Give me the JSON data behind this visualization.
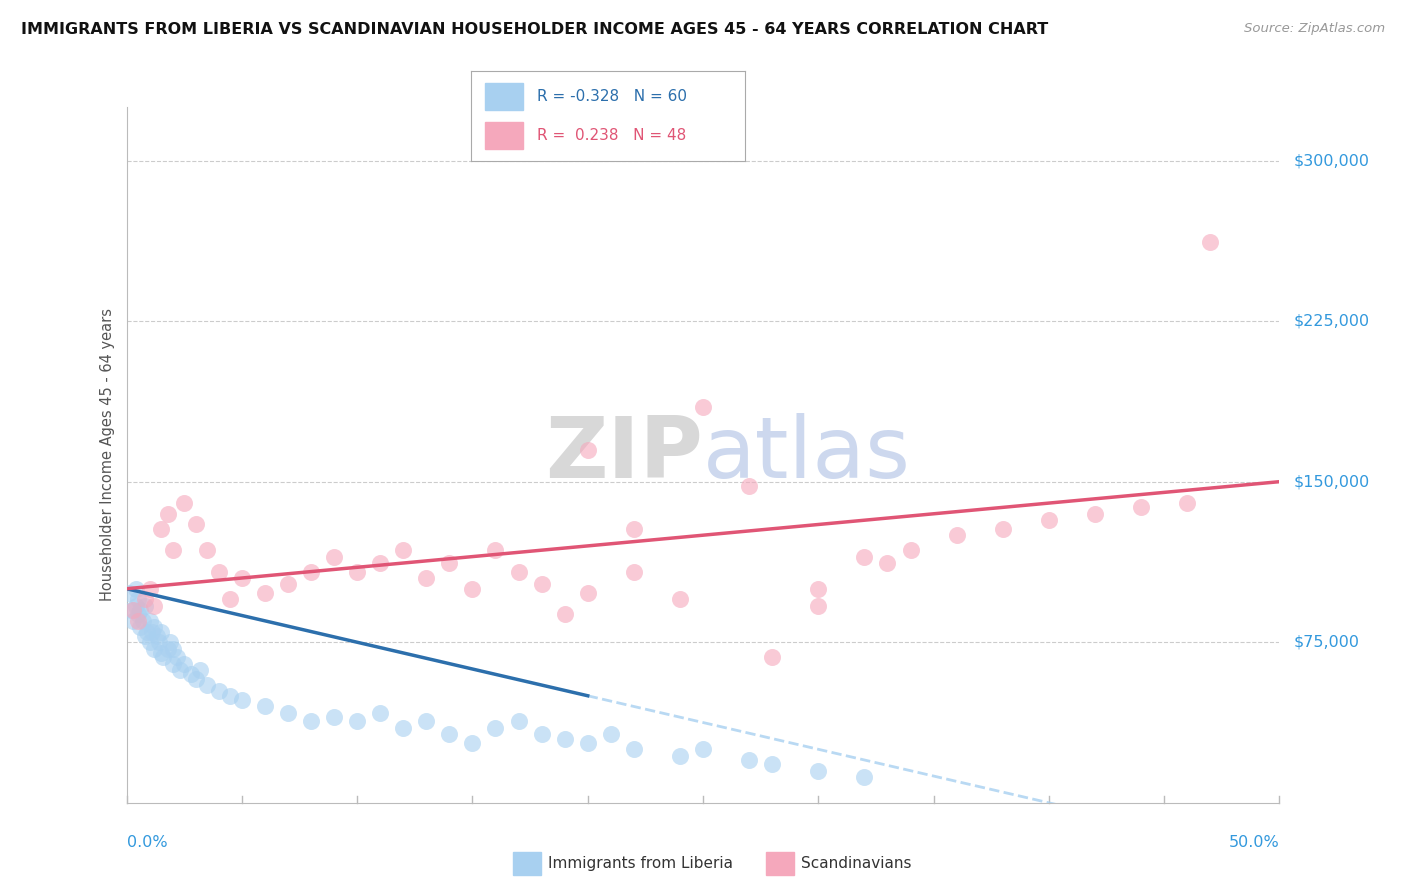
{
  "title": "IMMIGRANTS FROM LIBERIA VS SCANDINAVIAN HOUSEHOLDER INCOME AGES 45 - 64 YEARS CORRELATION CHART",
  "source": "Source: ZipAtlas.com",
  "ylabel": "Householder Income Ages 45 - 64 years",
  "ytick_values": [
    75000,
    150000,
    225000,
    300000
  ],
  "ytick_labels": [
    "$75,000",
    "$150,000",
    "$225,000",
    "$300,000"
  ],
  "xlim": [
    0.0,
    50.0
  ],
  "ylim": [
    0,
    325000
  ],
  "legend_blue_R": "-0.328",
  "legend_blue_N": "60",
  "legend_pink_R": "0.238",
  "legend_pink_N": "48",
  "blue_scatter_color": "#A8D0F0",
  "pink_scatter_color": "#F5A8BC",
  "blue_line_color": "#2C6FAC",
  "pink_line_color": "#E05575",
  "axis_label_color": "#3399DD",
  "grid_color": "#cccccc",
  "watermark_text": "ZIPatlas",
  "blue_scatter_x": [
    0.1,
    0.2,
    0.3,
    0.4,
    0.4,
    0.5,
    0.5,
    0.6,
    0.6,
    0.7,
    0.8,
    0.8,
    0.9,
    1.0,
    1.0,
    1.1,
    1.2,
    1.2,
    1.3,
    1.4,
    1.5,
    1.5,
    1.6,
    1.8,
    1.9,
    2.0,
    2.0,
    2.2,
    2.3,
    2.5,
    2.8,
    3.0,
    3.2,
    3.5,
    4.0,
    4.5,
    5.0,
    6.0,
    7.0,
    8.0,
    9.0,
    10.0,
    11.0,
    12.0,
    13.0,
    14.0,
    15.0,
    16.0,
    17.0,
    18.0,
    19.0,
    20.0,
    21.0,
    22.0,
    24.0,
    25.0,
    27.0,
    28.0,
    30.0,
    32.0
  ],
  "blue_scatter_y": [
    98000,
    90000,
    85000,
    92000,
    100000,
    88000,
    95000,
    82000,
    90000,
    85000,
    78000,
    92000,
    80000,
    75000,
    85000,
    80000,
    72000,
    82000,
    78000,
    75000,
    70000,
    80000,
    68000,
    72000,
    75000,
    65000,
    72000,
    68000,
    62000,
    65000,
    60000,
    58000,
    62000,
    55000,
    52000,
    50000,
    48000,
    45000,
    42000,
    38000,
    40000,
    38000,
    42000,
    35000,
    38000,
    32000,
    28000,
    35000,
    38000,
    32000,
    30000,
    28000,
    32000,
    25000,
    22000,
    25000,
    20000,
    18000,
    15000,
    12000
  ],
  "pink_scatter_x": [
    0.3,
    0.5,
    0.8,
    1.0,
    1.2,
    1.5,
    1.8,
    2.0,
    2.5,
    3.0,
    3.5,
    4.0,
    4.5,
    5.0,
    6.0,
    7.0,
    8.0,
    9.0,
    10.0,
    11.0,
    12.0,
    13.0,
    14.0,
    15.0,
    16.0,
    17.0,
    18.0,
    19.0,
    20.0,
    22.0,
    24.0,
    25.0,
    27.0,
    30.0,
    32.0,
    34.0,
    36.0,
    38.0,
    40.0,
    42.0,
    44.0,
    46.0,
    47.0,
    20.0,
    22.0,
    28.0,
    30.0,
    33.0
  ],
  "pink_scatter_y": [
    90000,
    85000,
    95000,
    100000,
    92000,
    128000,
    135000,
    118000,
    140000,
    130000,
    118000,
    108000,
    95000,
    105000,
    98000,
    102000,
    108000,
    115000,
    108000,
    112000,
    118000,
    105000,
    112000,
    100000,
    118000,
    108000,
    102000,
    88000,
    98000,
    108000,
    95000,
    185000,
    148000,
    92000,
    115000,
    118000,
    125000,
    128000,
    132000,
    135000,
    138000,
    140000,
    262000,
    165000,
    128000,
    68000,
    100000,
    112000
  ]
}
